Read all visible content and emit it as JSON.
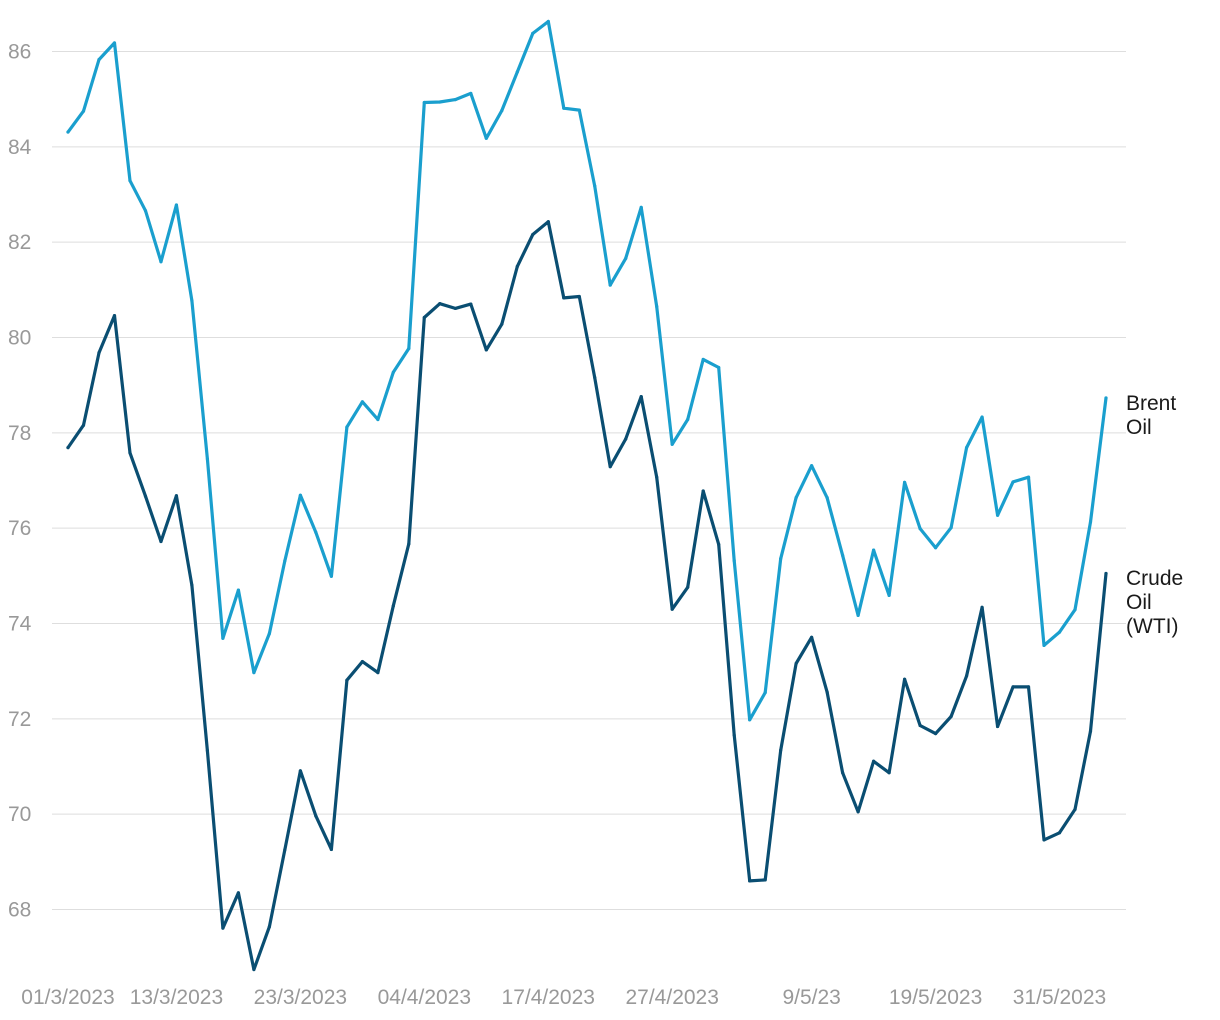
{
  "chart_data": {
    "type": "line",
    "title": "",
    "xlabel": "",
    "ylabel": "",
    "ylim": [
      66.7,
      86.9
    ],
    "grid": true,
    "legend": "inline labels at right end of each line",
    "yticks": [
      68,
      70,
      72,
      74,
      76,
      78,
      80,
      82,
      84,
      86
    ],
    "xtick_labels": [
      "01/3/2023",
      "13/3/2023",
      "23/3/2023",
      "04/4/2023",
      "17/4/2023",
      "27/4/2023",
      "9/5/23",
      "19/5/2023",
      "31/5/2023"
    ],
    "xtick_positions": [
      0,
      7,
      15,
      23,
      31,
      39,
      48,
      56,
      64
    ],
    "series": [
      {
        "name": "Brent Oil",
        "label_lines": [
          "Brent",
          "Oil"
        ],
        "color": "#1a9fce",
        "values": [
          84.31,
          84.75,
          85.83,
          86.18,
          83.29,
          82.66,
          81.59,
          82.78,
          80.77,
          77.45,
          73.69,
          74.7,
          72.97,
          73.79,
          75.32,
          76.69,
          75.91,
          74.99,
          78.12,
          78.65,
          78.28,
          79.27,
          79.77,
          84.93,
          84.94,
          84.99,
          85.12,
          84.18,
          84.76,
          85.57,
          86.38,
          86.63,
          84.81,
          84.77,
          83.18,
          81.1,
          81.66,
          82.73,
          80.65,
          77.76,
          78.28,
          79.54,
          79.37,
          75.32,
          71.98,
          72.55,
          75.36,
          76.64,
          77.31,
          76.64,
          75.43,
          74.17,
          75.54,
          74.59,
          76.96,
          75.99,
          75.59,
          76.01,
          77.69,
          78.33,
          76.27,
          76.97,
          77.07,
          73.54,
          73.82,
          74.29,
          76.13,
          78.73
        ]
      },
      {
        "name": "Crude Oil (WTI)",
        "label_lines": [
          "Crude",
          "Oil",
          "(WTI)"
        ],
        "color": "#0a4e72",
        "values": [
          77.69,
          78.16,
          79.68,
          80.46,
          77.58,
          76.67,
          75.72,
          76.68,
          74.8,
          71.33,
          67.61,
          68.35,
          66.74,
          67.64,
          69.26,
          70.91,
          69.96,
          69.26,
          72.81,
          73.2,
          72.97,
          74.37,
          75.67,
          80.42,
          80.71,
          80.61,
          80.7,
          79.74,
          80.28,
          81.49,
          82.16,
          82.43,
          80.83,
          80.86,
          79.16,
          77.29,
          77.87,
          78.76,
          77.07,
          74.3,
          74.76,
          76.78,
          75.66,
          71.66,
          68.6,
          68.62,
          71.34,
          73.16,
          73.71,
          72.56,
          70.87,
          70.05,
          71.11,
          70.87,
          72.83,
          71.86,
          71.69,
          72.05,
          72.9,
          74.34,
          71.84,
          72.67,
          72.67,
          69.46,
          69.61,
          70.1,
          71.74,
          75.05
        ]
      }
    ]
  }
}
